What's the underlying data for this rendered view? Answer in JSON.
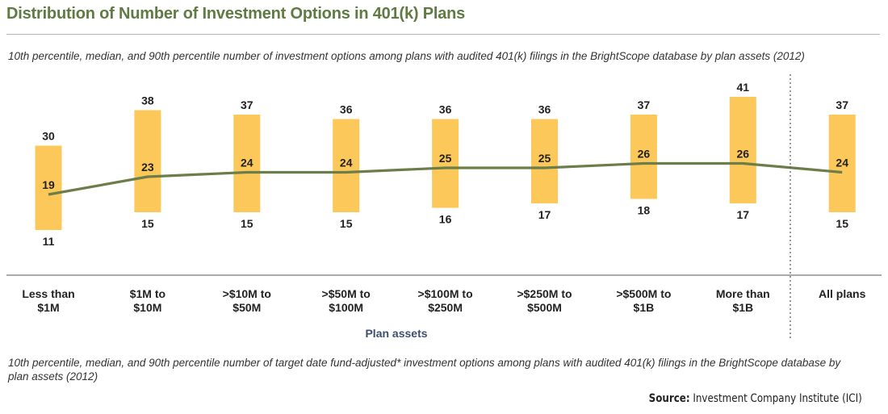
{
  "title": "Distribution of Number of Investment Options in 401(k) Plans",
  "subtitle": "10th percentile, median, and 90th percentile number of investment options among plans with audited 401(k) filings in the BrightScope database by plan assets (2012)",
  "footnote": "10th percentile, median, and 90th percentile number of target date fund-adjusted* investment options among plans with audited 401(k) filings in the BrightScope database by plan assets (2012)",
  "source": {
    "label": "Source:",
    "text": "Investment Company Institute (ICI)"
  },
  "colors": {
    "bar": "#fcc85a",
    "line": "#6b7d48",
    "title": "#5f7a42",
    "axis_label": "#3c4f6e"
  },
  "chart_data": {
    "type": "bar",
    "title": "Distribution of Number of Investment Options in 401(k) Plans",
    "xlabel": "Plan assets",
    "ylabel": "",
    "ylim": [
      5,
      45
    ],
    "categories": [
      [
        "Less than",
        "$1M"
      ],
      [
        "$1M to",
        "$10M"
      ],
      [
        ">$10M to",
        "$50M"
      ],
      [
        ">$50M to",
        "$100M"
      ],
      [
        ">$100M to",
        "$250M"
      ],
      [
        ">$250M to",
        "$500M"
      ],
      [
        ">$500M to",
        "$1B"
      ],
      [
        "More than",
        "$1B"
      ],
      [
        "All plans"
      ]
    ],
    "series": [
      {
        "name": "90th percentile",
        "values": [
          30,
          38,
          37,
          36,
          36,
          36,
          37,
          41,
          37
        ]
      },
      {
        "name": "Median",
        "values": [
          19,
          23,
          24,
          24,
          25,
          25,
          26,
          26,
          24
        ]
      },
      {
        "name": "10th percentile",
        "values": [
          11,
          15,
          15,
          15,
          16,
          17,
          18,
          17,
          15
        ]
      }
    ]
  }
}
